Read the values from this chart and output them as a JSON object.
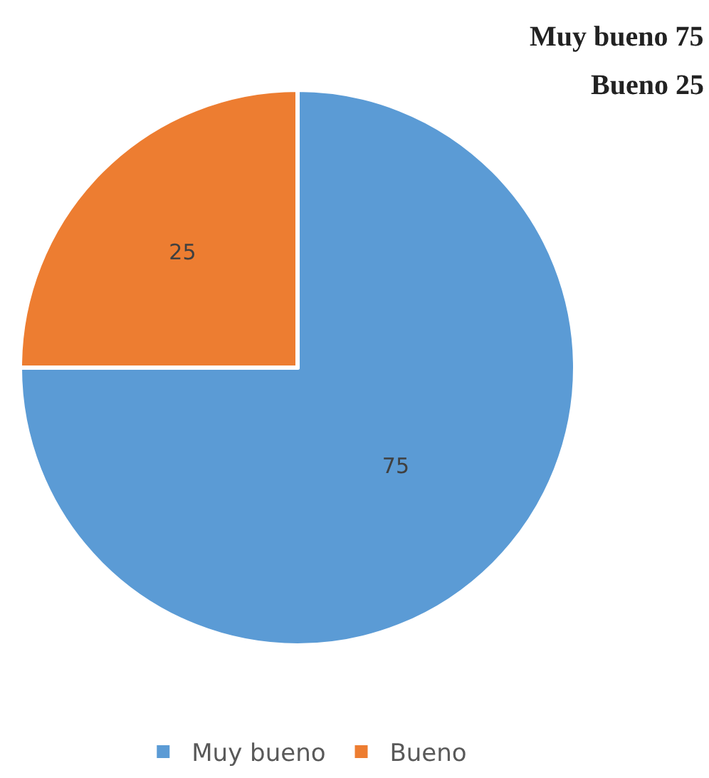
{
  "chart_data": {
    "type": "pie",
    "categories": [
      "Muy bueno",
      "Bueno"
    ],
    "values": [
      75,
      25
    ],
    "colors": [
      "#5b9bd5",
      "#ed7d31"
    ],
    "data_labels": true,
    "legend": "bottom",
    "annotations": [
      "Muy bueno 75",
      "Bueno 25"
    ]
  }
}
